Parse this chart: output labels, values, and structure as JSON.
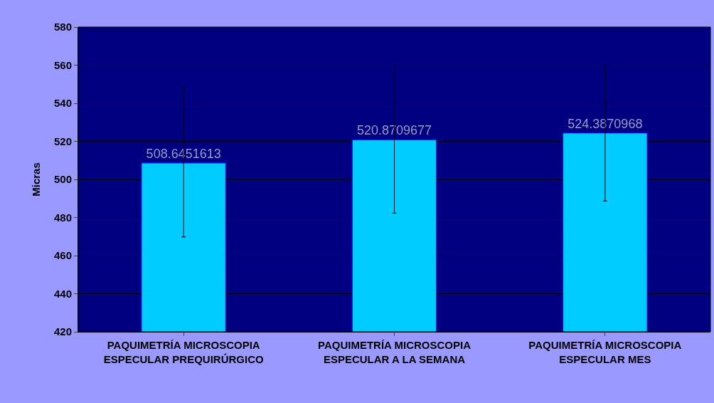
{
  "chart_data": {
    "type": "bar",
    "ylabel": "Micras",
    "categories": [
      "PAQUIMETRÍA MICROSCOPIA ESPECULAR PREQUIRÚRGICO",
      "PAQUIMETRÍA MICROSCOPIA ESPECULAR A LA SEMANA",
      "PAQUIMETRÍA MICROSCOPIA ESPECULAR MES"
    ],
    "values": [
      508.6451613,
      520.8709677,
      524.3870968
    ],
    "errors": [
      [
        469.8,
        548.3
      ],
      [
        482.3,
        560
      ],
      [
        488.7,
        560
      ]
    ],
    "color": "#00ccff",
    "data_labels": true,
    "ylim": [
      420,
      580
    ],
    "yticks": [
      420,
      440,
      460,
      480,
      500,
      520,
      540,
      560,
      580
    ],
    "grid": "y"
  }
}
